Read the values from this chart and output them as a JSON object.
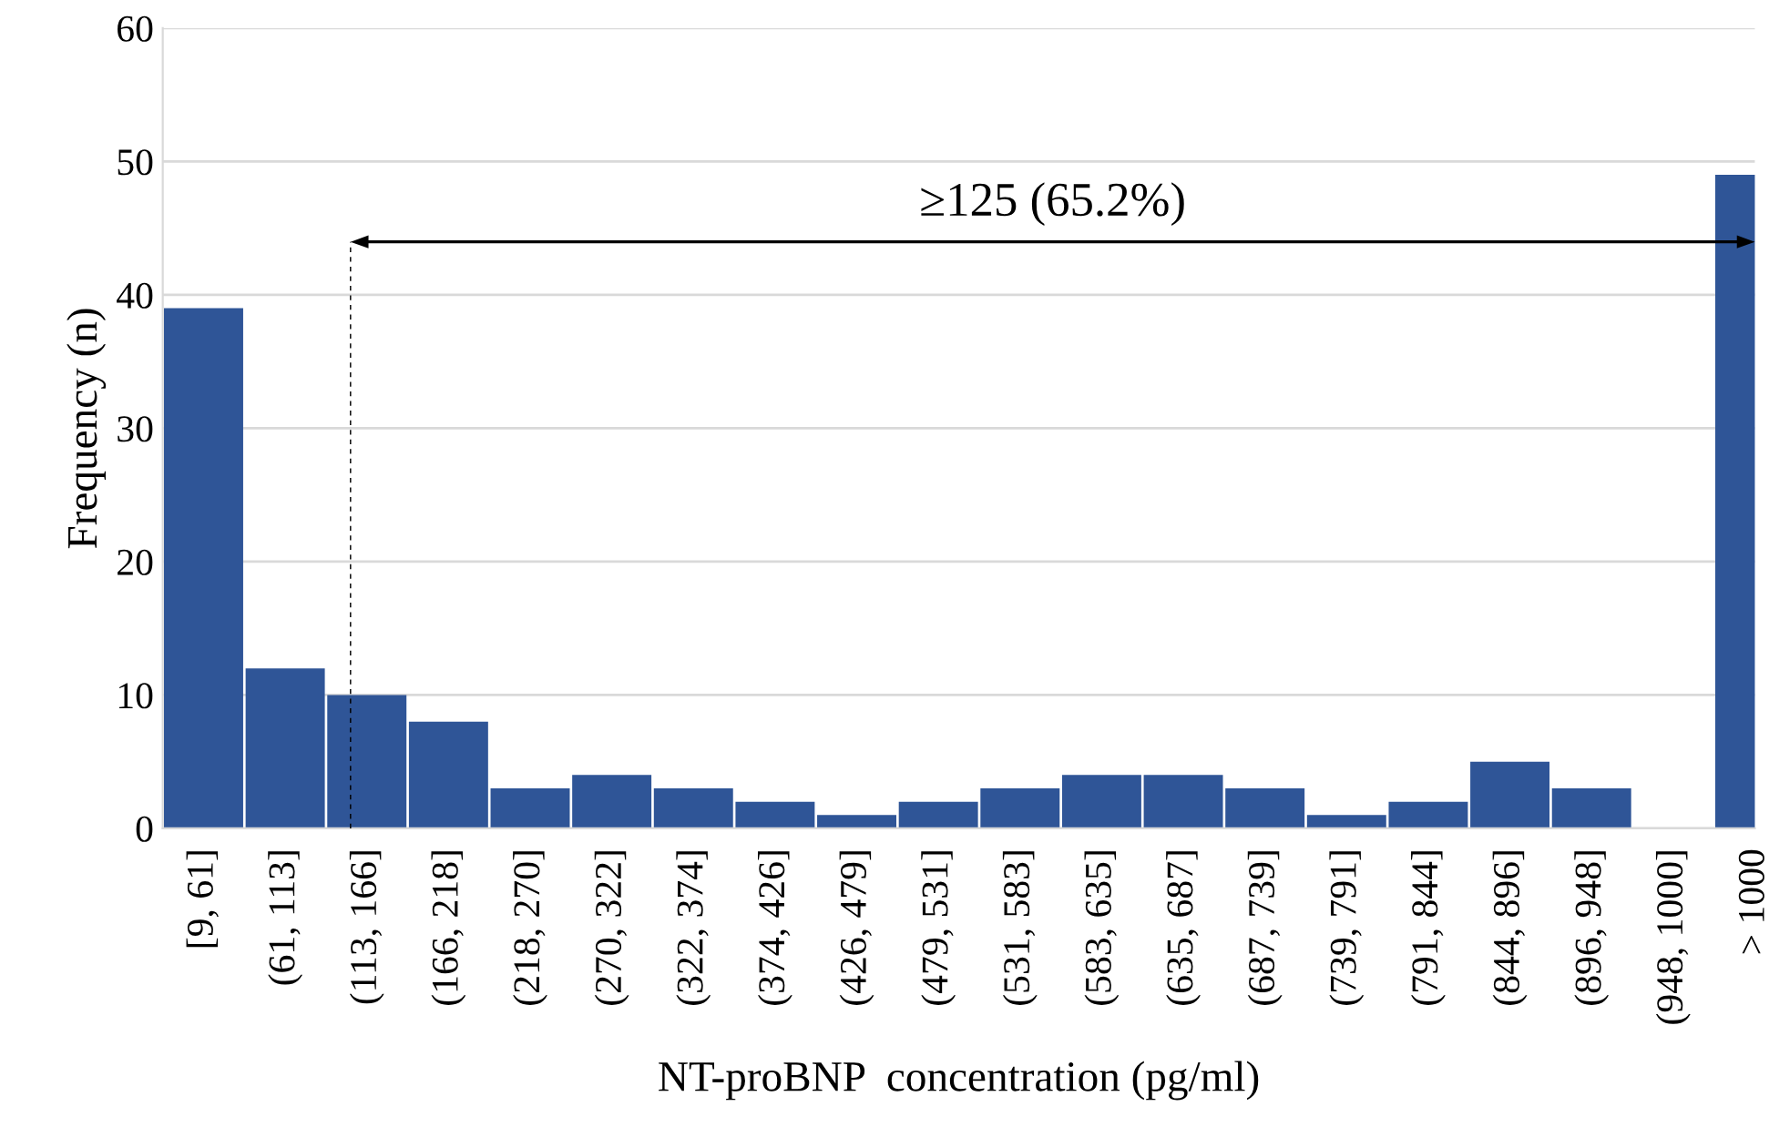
{
  "chart_data": {
    "type": "bar",
    "xlabel": "NT-proBNP  concentration (pg/ml)",
    "ylabel": "Frequency (n)",
    "categories": [
      "[9, 61]",
      "(61, 113]",
      "(113, 166]",
      "(166, 218]",
      "(218, 270]",
      "(270, 322]",
      "(322, 374]",
      "(374, 426]",
      "(426, 479]",
      "(479, 531]",
      "(531, 583]",
      "(583, 635]",
      "(635, 687]",
      "(687, 739]",
      "(739, 791]",
      "(791, 844]",
      "(844, 896]",
      "(896, 948]",
      "(948, 1000]",
      "> 1000"
    ],
    "values": [
      39,
      12,
      10,
      8,
      3,
      4,
      3,
      2,
      1,
      2,
      3,
      4,
      4,
      3,
      1,
      2,
      5,
      3,
      0,
      49
    ],
    "color": "#2f5597",
    "ylim": [
      0,
      60
    ],
    "yticks": [
      0,
      10,
      20,
      30,
      40,
      50,
      60
    ],
    "grid": "y",
    "annotations": [
      "≥125 (65.2%)"
    ]
  }
}
